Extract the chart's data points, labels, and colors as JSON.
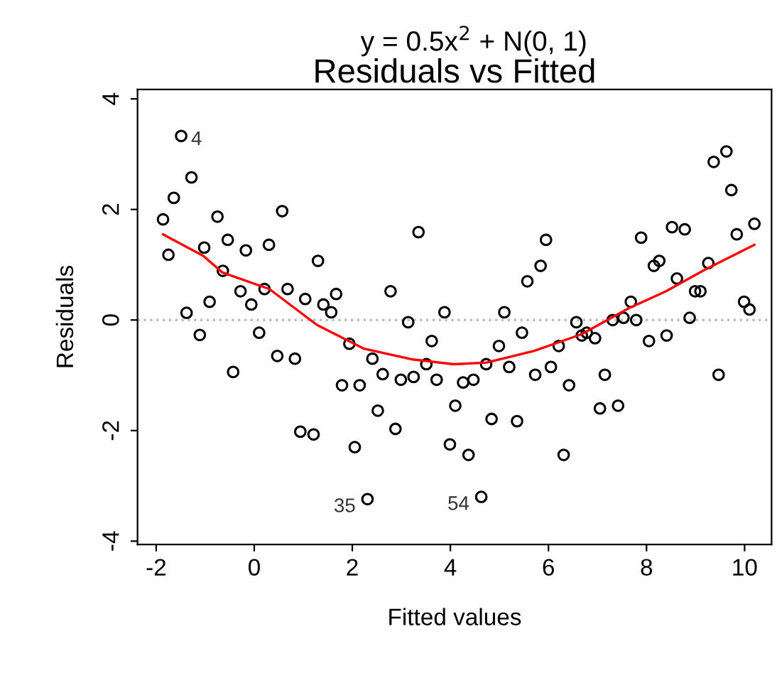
{
  "chart_data": {
    "type": "scatter",
    "title": "Residuals vs Fitted",
    "subtitle": "y = 0.5x$^{2}$ + N(0, 1)",
    "xlabel": "Fitted values",
    "ylabel": "Residuals",
    "xlim": [
      -2.38,
      10.55
    ],
    "ylim": [
      -4.06,
      4.17
    ],
    "xticks": [
      -2,
      0,
      2,
      4,
      6,
      8,
      10
    ],
    "yticks": [
      -4,
      -2,
      0,
      2,
      4
    ],
    "grid": false,
    "legend": false,
    "ref_lines": [
      {
        "axis": "y",
        "value": 0,
        "label": null,
        "color": "#bebebe",
        "line_style": "dotted"
      }
    ],
    "annotations": [
      {
        "text": "4",
        "x": -1.49,
        "y": 3.33
      },
      {
        "text": "35",
        "x": 2.31,
        "y": -3.24
      },
      {
        "text": "54",
        "x": 4.63,
        "y": -3.2
      }
    ],
    "series": [
      {
        "color": "#000000",
        "marker": "circle",
        "x": [
          -1.49,
          -1.28,
          -1.64,
          -1.86,
          -1.75,
          -1.38,
          -1.11,
          -1.02,
          -0.91,
          -0.75,
          -0.64,
          -0.54,
          -0.43,
          -0.28,
          -0.17,
          -0.06,
          0.1,
          0.21,
          0.3,
          0.47,
          0.57,
          0.68,
          0.83,
          0.94,
          1.04,
          1.21,
          1.3,
          1.41,
          1.57,
          1.67,
          1.79,
          1.94,
          2.05,
          2.15,
          2.31,
          2.41,
          2.52,
          2.62,
          2.78,
          2.88,
          2.99,
          3.14,
          3.25,
          3.35,
          3.51,
          3.62,
          3.72,
          3.88,
          4.1,
          3.99,
          4.26,
          4.47,
          4.37,
          4.63,
          4.73,
          4.84,
          4.99,
          5.1,
          5.2,
          5.36,
          5.46,
          5.57,
          5.73,
          5.84,
          5.95,
          6.05,
          6.21,
          6.31,
          6.42,
          6.57,
          6.68,
          6.78,
          6.95,
          7.05,
          7.15,
          7.31,
          7.42,
          7.53,
          7.68,
          7.79,
          7.89,
          8.05,
          8.15,
          8.26,
          8.41,
          8.52,
          8.62,
          8.78,
          8.88,
          8.99,
          9.1,
          9.26,
          9.37,
          9.47,
          9.63,
          9.73,
          9.84,
          9.99,
          10.1,
          10.2
        ],
        "values": [
          3.33,
          2.58,
          2.21,
          1.82,
          1.18,
          0.13,
          -0.27,
          1.31,
          0.33,
          1.87,
          0.89,
          1.45,
          -0.94,
          0.52,
          1.26,
          0.28,
          -0.23,
          0.56,
          1.36,
          -0.65,
          1.97,
          0.56,
          -0.7,
          -2.02,
          0.38,
          -2.07,
          1.07,
          0.28,
          0.14,
          0.47,
          -1.18,
          -0.43,
          -2.3,
          -1.18,
          -3.24,
          -0.7,
          -1.64,
          -0.98,
          0.52,
          -1.97,
          -1.08,
          -0.04,
          -1.03,
          1.59,
          -0.8,
          -0.38,
          -1.08,
          0.14,
          -1.55,
          -2.25,
          -1.13,
          -1.08,
          -2.44,
          -3.2,
          -0.8,
          -1.79,
          -0.47,
          0.14,
          -0.85,
          -1.83,
          -0.23,
          0.7,
          -0.99,
          0.98,
          1.45,
          -0.85,
          -0.47,
          -2.44,
          -1.18,
          -0.04,
          -0.28,
          -0.23,
          -0.33,
          -1.6,
          -0.99,
          0.0,
          -1.55,
          0.04,
          0.33,
          0.0,
          1.49,
          -0.38,
          0.98,
          1.07,
          -0.28,
          1.68,
          0.75,
          1.64,
          0.04,
          0.52,
          0.52,
          1.03,
          2.86,
          -0.99,
          3.05,
          2.35,
          1.55,
          0.33,
          0.19,
          1.74
        ]
      },
      {
        "type": "line",
        "color": "#ff0000",
        "x": [
          -1.86,
          -1.04,
          -0.65,
          0.31,
          1.28,
          2.24,
          3.2,
          4.07,
          4.74,
          5.7,
          6.67,
          7.63,
          8.4,
          9.17,
          10.2
        ],
        "values": [
          1.55,
          1.16,
          0.86,
          0.56,
          -0.09,
          -0.52,
          -0.71,
          -0.8,
          -0.77,
          -0.56,
          -0.26,
          0.21,
          0.52,
          0.9,
          1.36
        ]
      }
    ]
  }
}
